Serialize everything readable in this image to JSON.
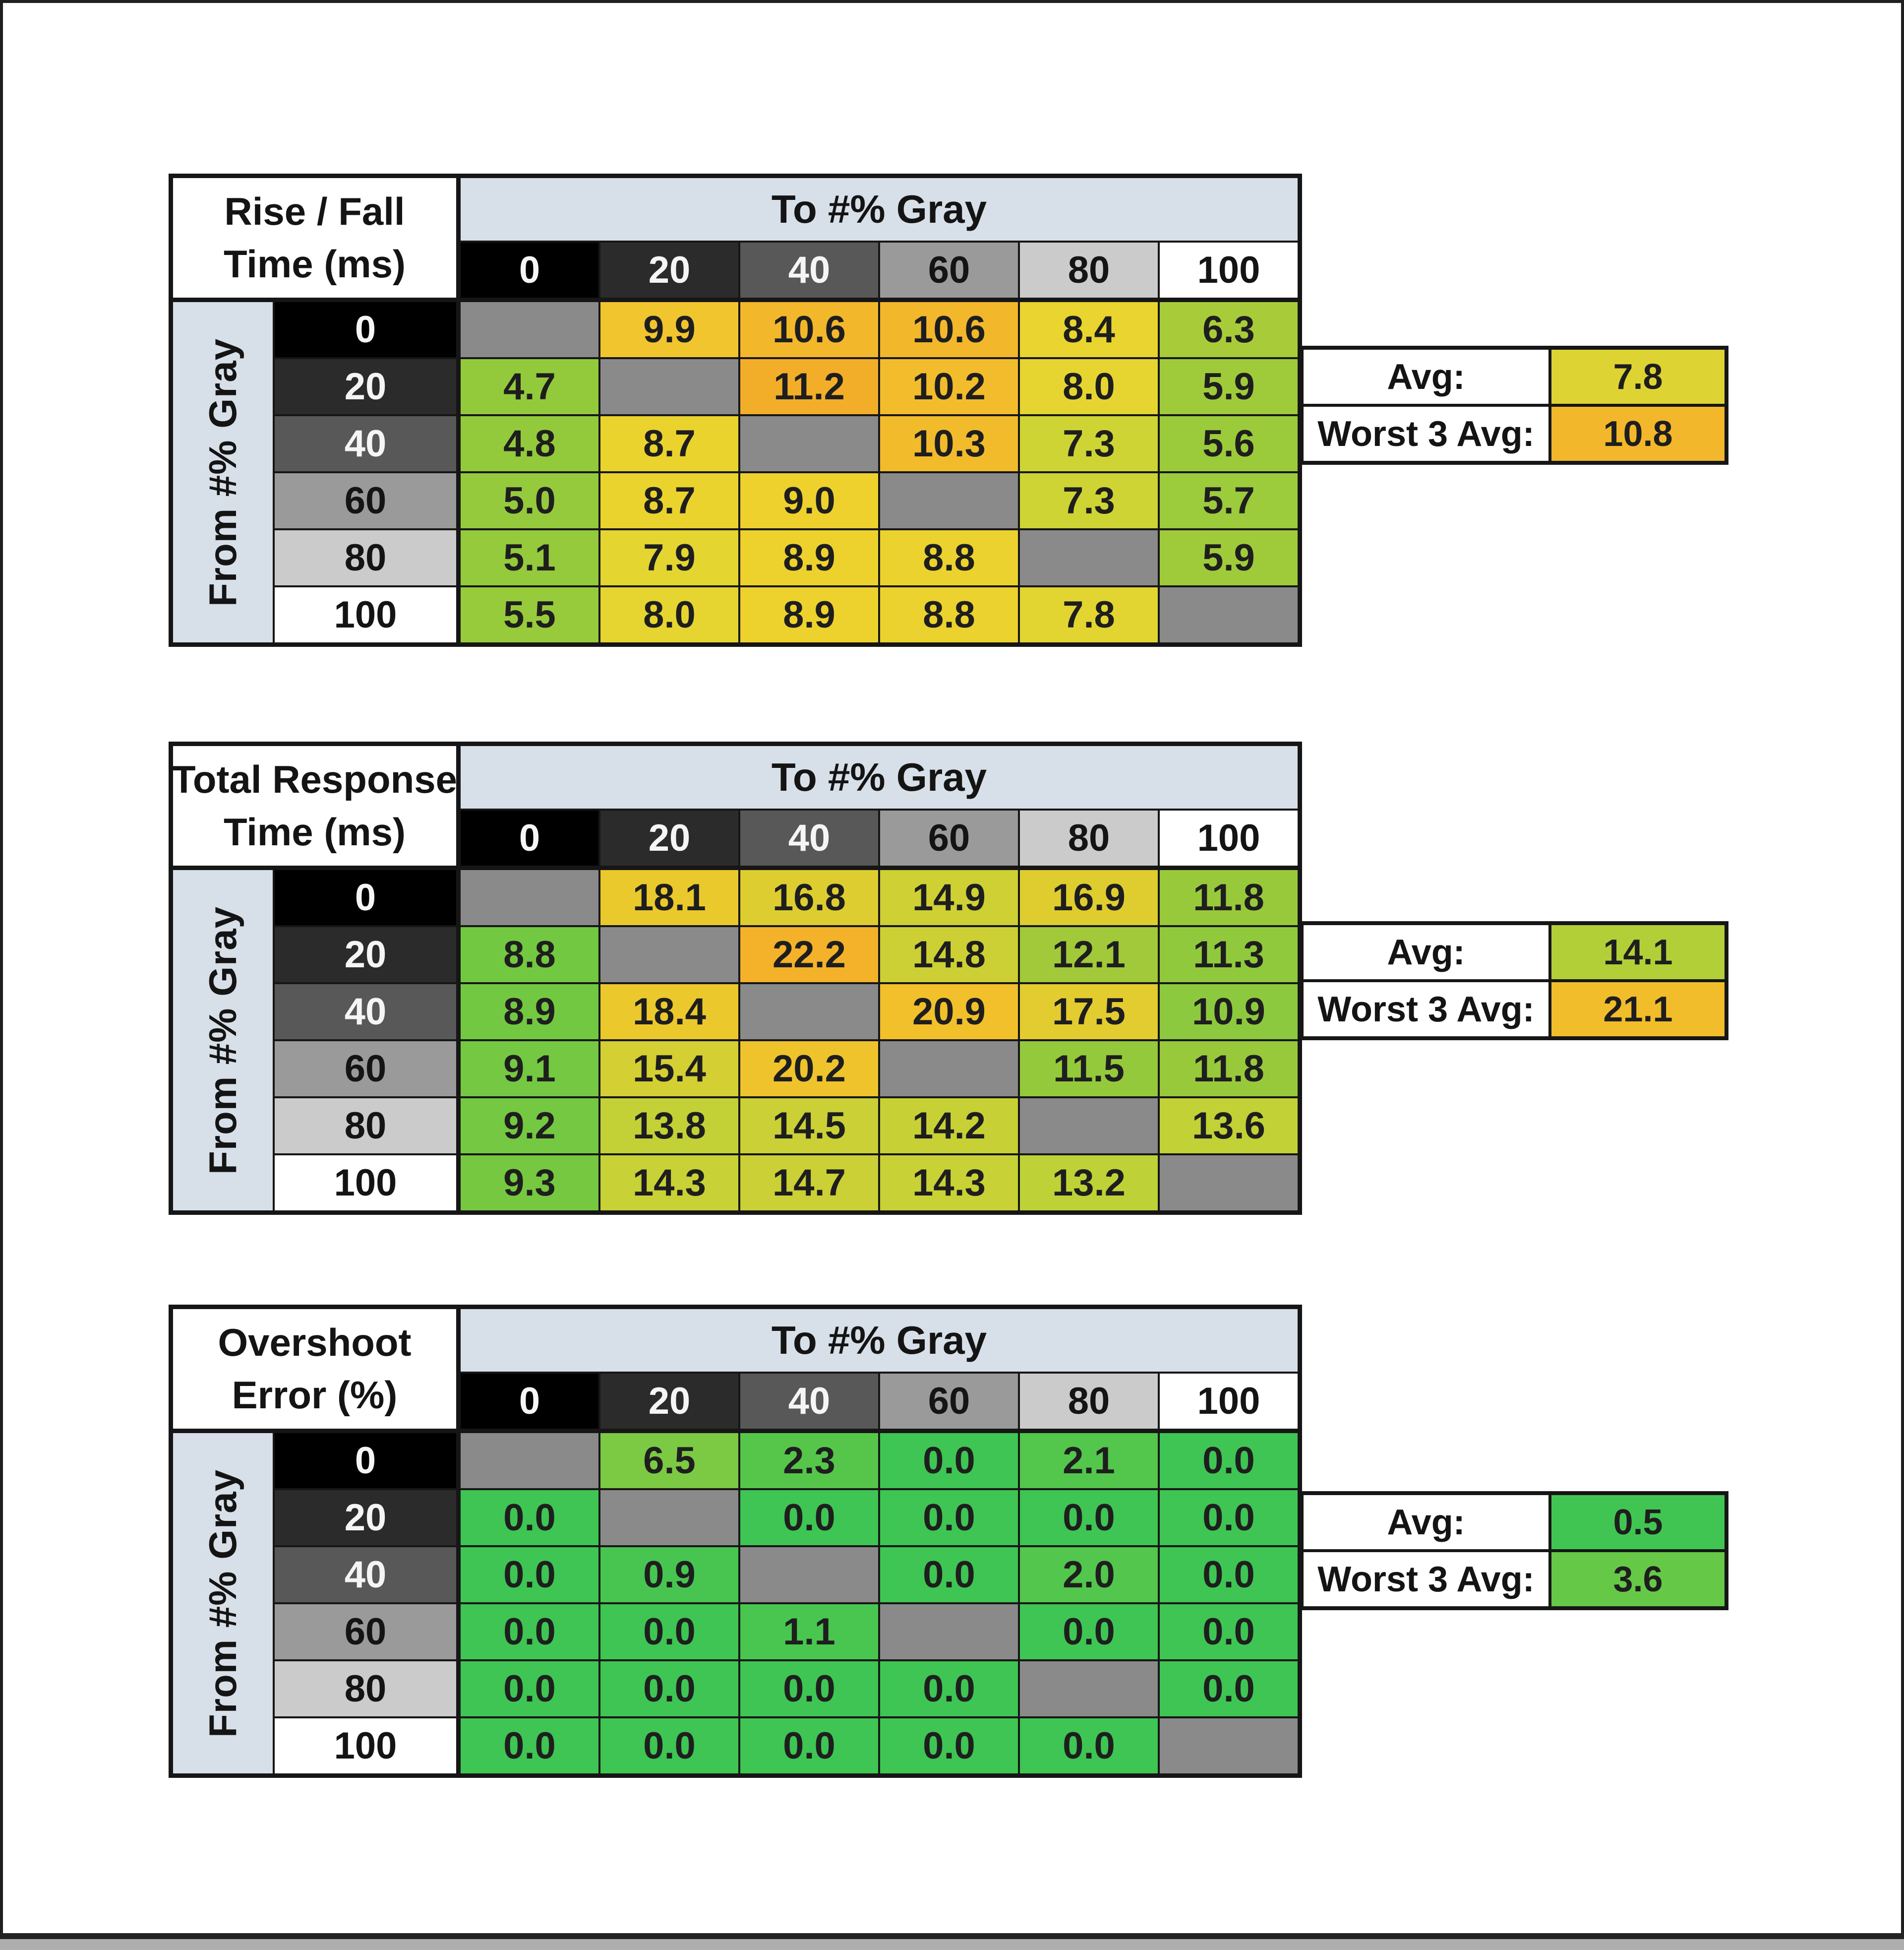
{
  "shared": {
    "to_header": "To #% Gray",
    "from_header": "From #% Gray",
    "col_headers": [
      "0",
      "20",
      "40",
      "60",
      "80",
      "100"
    ],
    "row_headers": [
      "0",
      "20",
      "40",
      "60",
      "80",
      "100"
    ],
    "header_shades": [
      {
        "bg": "#000000",
        "fg": "#f5f5f5"
      },
      {
        "bg": "#2b2b2b",
        "fg": "#f5f5f5"
      },
      {
        "bg": "#585858",
        "fg": "#f5f5f5"
      },
      {
        "bg": "#9a9a9a",
        "fg": "#141414"
      },
      {
        "bg": "#cbcbcb",
        "fg": "#141414"
      },
      {
        "bg": "#ffffff",
        "fg": "#141414"
      }
    ],
    "band_color": "#d7dfe8",
    "diag_color": "#8a8a8a",
    "avg_label": "Avg:",
    "worst_label": "Worst 3 Avg:"
  },
  "tables": [
    {
      "title1": "Rise / Fall",
      "title2": "Time (ms)",
      "cells": [
        [
          null,
          {
            "v": "9.9",
            "c": "#f1c52e"
          },
          {
            "v": "10.6",
            "c": "#f2b72b"
          },
          {
            "v": "10.6",
            "c": "#f2b72b"
          },
          {
            "v": "8.4",
            "c": "#ead42f"
          },
          {
            "v": "6.3",
            "c": "#a8cc39"
          }
        ],
        [
          {
            "v": "4.7",
            "c": "#93ca3c"
          },
          null,
          {
            "v": "11.2",
            "c": "#f2ae29"
          },
          {
            "v": "10.2",
            "c": "#f2bc2c"
          },
          {
            "v": "8.0",
            "c": "#e6d530"
          },
          {
            "v": "5.9",
            "c": "#9fcb3a"
          }
        ],
        [
          {
            "v": "4.8",
            "c": "#93ca3c"
          },
          {
            "v": "8.7",
            "c": "#ebd32e"
          },
          null,
          {
            "v": "10.3",
            "c": "#f2bb2c"
          },
          {
            "v": "7.3",
            "c": "#ced434"
          },
          {
            "v": "5.6",
            "c": "#9bcb3b"
          }
        ],
        [
          {
            "v": "5.0",
            "c": "#94ca3c"
          },
          {
            "v": "8.7",
            "c": "#ebd32e"
          },
          {
            "v": "9.0",
            "c": "#eed12d"
          },
          null,
          {
            "v": "7.3",
            "c": "#ced434"
          },
          {
            "v": "5.7",
            "c": "#9ccb3b"
          }
        ],
        [
          {
            "v": "5.1",
            "c": "#94ca3c"
          },
          {
            "v": "7.9",
            "c": "#e4d531"
          },
          {
            "v": "8.9",
            "c": "#edd22e"
          },
          {
            "v": "8.8",
            "c": "#ecd22e"
          },
          null,
          {
            "v": "5.9",
            "c": "#9fcb3a"
          }
        ],
        [
          {
            "v": "5.5",
            "c": "#98cb3b"
          },
          {
            "v": "8.0",
            "c": "#e6d530"
          },
          {
            "v": "8.9",
            "c": "#edd22e"
          },
          {
            "v": "8.8",
            "c": "#ecd22e"
          },
          {
            "v": "7.8",
            "c": "#e2d531"
          },
          null
        ]
      ],
      "avg": {
        "v": "7.8",
        "c": "#ddd433"
      },
      "worst": {
        "v": "10.8",
        "c": "#f2b72b"
      }
    },
    {
      "title1": "Total Response",
      "title2": "Time (ms)",
      "cells": [
        [
          null,
          {
            "v": "18.1",
            "c": "#eac92c"
          },
          {
            "v": "16.8",
            "c": "#decd30"
          },
          {
            "v": "14.9",
            "c": "#ced034"
          },
          {
            "v": "16.9",
            "c": "#dfcd30"
          },
          {
            "v": "11.8",
            "c": "#98c93b"
          }
        ],
        [
          {
            "v": "8.8",
            "c": "#73c841"
          },
          null,
          {
            "v": "22.2",
            "c": "#f3b229"
          },
          {
            "v": "14.8",
            "c": "#cdd034"
          },
          {
            "v": "12.1",
            "c": "#a1c939"
          },
          {
            "v": "11.3",
            "c": "#91c93d"
          }
        ],
        [
          {
            "v": "8.9",
            "c": "#73c841"
          },
          {
            "v": "18.4",
            "c": "#ebc92c"
          },
          null,
          {
            "v": "20.9",
            "c": "#f1c02b"
          },
          {
            "v": "17.5",
            "c": "#e3cc2f"
          },
          {
            "v": "10.9",
            "c": "#8dc93e"
          }
        ],
        [
          {
            "v": "9.1",
            "c": "#75c841"
          },
          {
            "v": "15.4",
            "c": "#d4cf32"
          },
          {
            "v": "20.2",
            "c": "#efc32c"
          },
          null,
          {
            "v": "11.5",
            "c": "#94c93c"
          },
          {
            "v": "11.8",
            "c": "#98c93b"
          }
        ],
        [
          {
            "v": "9.2",
            "c": "#75c841"
          },
          {
            "v": "13.8",
            "c": "#c3d136"
          },
          {
            "v": "14.5",
            "c": "#cad035"
          },
          {
            "v": "14.2",
            "c": "#c7d135"
          },
          null,
          {
            "v": "13.6",
            "c": "#c1d136"
          }
        ],
        [
          {
            "v": "9.3",
            "c": "#76c840"
          },
          {
            "v": "14.3",
            "c": "#c8d135"
          },
          {
            "v": "14.7",
            "c": "#cad035"
          },
          {
            "v": "14.3",
            "c": "#c8d135"
          },
          {
            "v": "13.2",
            "c": "#bed237"
          },
          null
        ]
      ],
      "avg": {
        "v": "14.1",
        "c": "#b3cf38"
      },
      "worst": {
        "v": "21.1",
        "c": "#f1bd2b"
      }
    },
    {
      "title1": "Overshoot",
      "title2": "Error (%)",
      "cells": [
        [
          null,
          {
            "v": "6.5",
            "c": "#7cc943"
          },
          {
            "v": "2.3",
            "c": "#56c64b"
          },
          {
            "v": "0.0",
            "c": "#3ec553"
          },
          {
            "v": "2.1",
            "c": "#53c64c"
          },
          {
            "v": "0.0",
            "c": "#3ec553"
          }
        ],
        [
          {
            "v": "0.0",
            "c": "#3ec553"
          },
          null,
          {
            "v": "0.0",
            "c": "#3ec553"
          },
          {
            "v": "0.0",
            "c": "#3ec553"
          },
          {
            "v": "0.0",
            "c": "#3ec553"
          },
          {
            "v": "0.0",
            "c": "#3ec553"
          }
        ],
        [
          {
            "v": "0.0",
            "c": "#3ec553"
          },
          {
            "v": "0.9",
            "c": "#47c550"
          },
          null,
          {
            "v": "0.0",
            "c": "#3ec553"
          },
          {
            "v": "2.0",
            "c": "#52c64d"
          },
          {
            "v": "0.0",
            "c": "#3ec553"
          }
        ],
        [
          {
            "v": "0.0",
            "c": "#3ec553"
          },
          {
            "v": "0.0",
            "c": "#3ec553"
          },
          {
            "v": "1.1",
            "c": "#49c64f"
          },
          null,
          {
            "v": "0.0",
            "c": "#3ec553"
          },
          {
            "v": "0.0",
            "c": "#3ec553"
          }
        ],
        [
          {
            "v": "0.0",
            "c": "#3ec553"
          },
          {
            "v": "0.0",
            "c": "#3ec553"
          },
          {
            "v": "0.0",
            "c": "#3ec553"
          },
          {
            "v": "0.0",
            "c": "#3ec553"
          },
          null,
          {
            "v": "0.0",
            "c": "#3ec553"
          }
        ],
        [
          {
            "v": "0.0",
            "c": "#3ec553"
          },
          {
            "v": "0.0",
            "c": "#3ec553"
          },
          {
            "v": "0.0",
            "c": "#3ec553"
          },
          {
            "v": "0.0",
            "c": "#3ec553"
          },
          {
            "v": "0.0",
            "c": "#3ec553"
          },
          null
        ]
      ],
      "avg": {
        "v": "0.5",
        "c": "#41c552"
      },
      "worst": {
        "v": "3.6",
        "c": "#66c847"
      }
    }
  ],
  "chart_data": [
    {
      "type": "heatmap",
      "title": "Rise / Fall Time (ms)",
      "xlabel": "To #% Gray",
      "ylabel": "From #% Gray",
      "x": [
        0,
        20,
        40,
        60,
        80,
        100
      ],
      "y": [
        0,
        20,
        40,
        60,
        80,
        100
      ],
      "rows": [
        [
          null,
          9.9,
          10.6,
          10.6,
          8.4,
          6.3
        ],
        [
          4.7,
          null,
          11.2,
          10.2,
          8.0,
          5.9
        ],
        [
          4.8,
          8.7,
          null,
          10.3,
          7.3,
          5.6
        ],
        [
          5.0,
          8.7,
          9.0,
          null,
          7.3,
          5.7
        ],
        [
          5.1,
          7.9,
          8.9,
          8.8,
          null,
          5.9
        ],
        [
          5.5,
          8.0,
          8.9,
          8.8,
          7.8,
          null
        ]
      ],
      "avg": 7.8,
      "worst_3_avg": 10.8
    },
    {
      "type": "heatmap",
      "title": "Total Response Time (ms)",
      "xlabel": "To #% Gray",
      "ylabel": "From #% Gray",
      "x": [
        0,
        20,
        40,
        60,
        80,
        100
      ],
      "y": [
        0,
        20,
        40,
        60,
        80,
        100
      ],
      "rows": [
        [
          null,
          18.1,
          16.8,
          14.9,
          16.9,
          11.8
        ],
        [
          8.8,
          null,
          22.2,
          14.8,
          12.1,
          11.3
        ],
        [
          8.9,
          18.4,
          null,
          20.9,
          17.5,
          10.9
        ],
        [
          9.1,
          15.4,
          20.2,
          null,
          11.5,
          11.8
        ],
        [
          9.2,
          13.8,
          14.5,
          14.2,
          null,
          13.6
        ],
        [
          9.3,
          14.3,
          14.7,
          14.3,
          13.2,
          null
        ]
      ],
      "avg": 14.1,
      "worst_3_avg": 21.1
    },
    {
      "type": "heatmap",
      "title": "Overshoot Error (%)",
      "xlabel": "To #% Gray",
      "ylabel": "From #% Gray",
      "x": [
        0,
        20,
        40,
        60,
        80,
        100
      ],
      "y": [
        0,
        20,
        40,
        60,
        80,
        100
      ],
      "rows": [
        [
          null,
          6.5,
          2.3,
          0.0,
          2.1,
          0.0
        ],
        [
          0.0,
          null,
          0.0,
          0.0,
          0.0,
          0.0
        ],
        [
          0.0,
          0.9,
          null,
          0.0,
          2.0,
          0.0
        ],
        [
          0.0,
          0.0,
          1.1,
          null,
          0.0,
          0.0
        ],
        [
          0.0,
          0.0,
          0.0,
          0.0,
          null,
          0.0
        ],
        [
          0.0,
          0.0,
          0.0,
          0.0,
          0.0,
          null
        ]
      ],
      "avg": 0.5,
      "worst_3_avg": 3.6
    }
  ]
}
